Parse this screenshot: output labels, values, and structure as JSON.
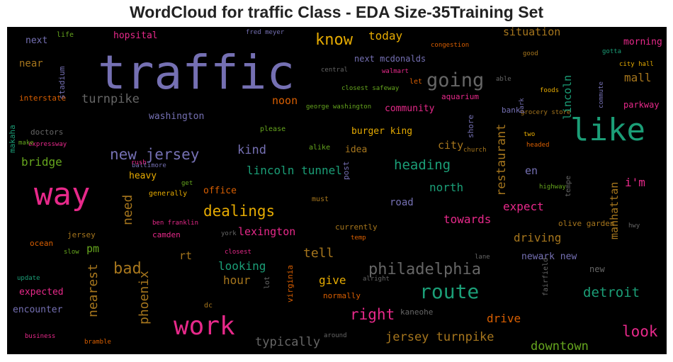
{
  "title": "WordCloud for traffic Class - EDA Size-35Training Set",
  "colors": {
    "purple": "#7570b3",
    "teal": "#1b9e77",
    "pink": "#e7298a",
    "orange": "#d95f02",
    "green": "#66a61e",
    "gold": "#e6ab02",
    "brown": "#a6761d",
    "gray": "#666666"
  },
  "words": [
    {
      "text": "traffic"
    },
    {
      "text": "way"
    },
    {
      "text": "like"
    },
    {
      "text": "work"
    },
    {
      "text": "route"
    },
    {
      "text": "going"
    },
    {
      "text": "philadelphia"
    },
    {
      "text": "know"
    },
    {
      "text": "new jersey"
    },
    {
      "text": "dealings"
    },
    {
      "text": "bad"
    },
    {
      "text": "heading"
    },
    {
      "text": "right"
    },
    {
      "text": "look"
    },
    {
      "text": "detroit"
    },
    {
      "text": "turnpike"
    },
    {
      "text": "typically"
    },
    {
      "text": "jersey turnpike"
    },
    {
      "text": "downtown"
    },
    {
      "text": "tell"
    },
    {
      "text": "kind"
    },
    {
      "text": "bridge"
    },
    {
      "text": "lincoln tunnel"
    },
    {
      "text": "north"
    },
    {
      "text": "today"
    },
    {
      "text": "mall"
    },
    {
      "text": "expect"
    },
    {
      "text": "driving"
    },
    {
      "text": "towards"
    },
    {
      "text": "looking"
    },
    {
      "text": "hour"
    },
    {
      "text": "give"
    },
    {
      "text": "drive"
    },
    {
      "text": "lexington"
    },
    {
      "text": "situation"
    },
    {
      "text": "noon"
    },
    {
      "text": "city"
    },
    {
      "text": "i'm"
    },
    {
      "text": "rt"
    },
    {
      "text": "pm"
    },
    {
      "text": "en"
    },
    {
      "text": "road"
    },
    {
      "text": "morning"
    },
    {
      "text": "washington"
    },
    {
      "text": "near"
    },
    {
      "text": "next"
    },
    {
      "text": "expected"
    },
    {
      "text": "encounter"
    },
    {
      "text": "office"
    },
    {
      "text": "newark new"
    },
    {
      "text": "burger king"
    },
    {
      "text": "community"
    },
    {
      "text": "idea"
    },
    {
      "text": "heavy"
    },
    {
      "text": "hopsital"
    },
    {
      "text": "next mcdonalds"
    },
    {
      "text": "parkway"
    },
    {
      "text": "olive garden"
    },
    {
      "text": "new"
    },
    {
      "text": "kaneohe"
    },
    {
      "text": "jersey"
    },
    {
      "text": "camden"
    },
    {
      "text": "currently"
    },
    {
      "text": "normally"
    },
    {
      "text": "aquarium"
    },
    {
      "text": "bank"
    },
    {
      "text": "interstate"
    },
    {
      "text": "doctors"
    },
    {
      "text": "ocean"
    },
    {
      "text": "generally"
    },
    {
      "text": "please"
    },
    {
      "text": "must"
    },
    {
      "text": "alike"
    },
    {
      "text": "dc"
    },
    {
      "text": "life"
    },
    {
      "text": "let"
    },
    {
      "text": "foods"
    },
    {
      "text": "city hall"
    },
    {
      "text": "closest safeway"
    },
    {
      "text": "congestion"
    },
    {
      "text": "walmart"
    },
    {
      "text": "central"
    },
    {
      "text": "fred meyer"
    },
    {
      "text": "george washington"
    },
    {
      "text": "grocery store"
    },
    {
      "text": "good"
    },
    {
      "text": "gotta"
    },
    {
      "text": "able"
    },
    {
      "text": "two"
    },
    {
      "text": "headed"
    },
    {
      "text": "church"
    },
    {
      "text": "highway"
    },
    {
      "text": "hwy"
    },
    {
      "text": "lane"
    },
    {
      "text": "around"
    },
    {
      "text": "temp"
    },
    {
      "text": "york"
    },
    {
      "text": "closest"
    },
    {
      "text": "ben franklin"
    },
    {
      "text": "baltimore"
    },
    {
      "text": "rush"
    },
    {
      "text": "get"
    },
    {
      "text": "slow"
    },
    {
      "text": "update"
    },
    {
      "text": "alright"
    },
    {
      "text": "business"
    },
    {
      "text": "bramble"
    },
    {
      "text": "expressway"
    },
    {
      "text": "make"
    },
    {
      "text": "nearest"
    },
    {
      "text": "phoenix"
    },
    {
      "text": "need"
    },
    {
      "text": "restaurant"
    },
    {
      "text": "lincoln"
    },
    {
      "text": "manhattan"
    },
    {
      "text": "stadium"
    },
    {
      "text": "makaha"
    },
    {
      "text": "shore"
    },
    {
      "text": "post"
    },
    {
      "text": "virginia"
    },
    {
      "text": "lot"
    },
    {
      "text": "fairfield"
    },
    {
      "text": "tempe"
    },
    {
      "text": "commute"
    },
    {
      "text": "park"
    }
  ]
}
